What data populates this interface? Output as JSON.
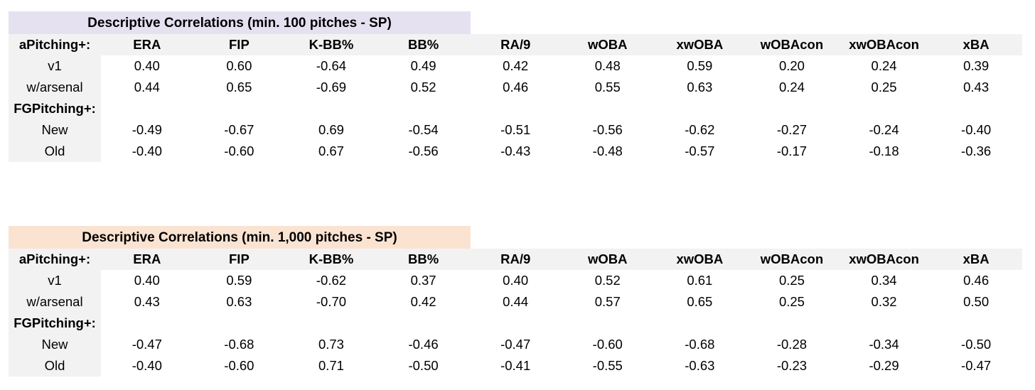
{
  "tables": [
    {
      "title": "Descriptive Correlations (min. 100 pitches - SP)",
      "title_bg": "#e6e1f1",
      "header_label": "aPitching+:",
      "columns": [
        "ERA",
        "FIP",
        "K-BB%",
        "BB%",
        "RA/9",
        "wOBA",
        "xwOBA",
        "wOBAcon",
        "xwOBAcon",
        "xBA"
      ],
      "rows": [
        {
          "label": "v1",
          "values": [
            "0.40",
            "0.60",
            "-0.64",
            "0.49",
            "0.42",
            "0.48",
            "0.59",
            "0.20",
            "0.24",
            "0.39"
          ]
        },
        {
          "label": "w/arsenal",
          "values": [
            "0.44",
            "0.65",
            "-0.69",
            "0.52",
            "0.46",
            "0.55",
            "0.63",
            "0.24",
            "0.25",
            "0.43"
          ]
        },
        {
          "label": "FGPitching+:",
          "values": [
            "",
            "",
            "",
            "",
            "",
            "",
            "",
            "",
            "",
            ""
          ]
        },
        {
          "label": "New",
          "values": [
            "-0.49",
            "-0.67",
            "0.69",
            "-0.54",
            "-0.51",
            "-0.56",
            "-0.62",
            "-0.27",
            "-0.24",
            "-0.40"
          ]
        },
        {
          "label": "Old",
          "values": [
            "-0.40",
            "-0.60",
            "0.67",
            "-0.56",
            "-0.43",
            "-0.48",
            "-0.57",
            "-0.17",
            "-0.18",
            "-0.36"
          ]
        }
      ]
    },
    {
      "title": "Descriptive Correlations (min. 1,000 pitches - SP)",
      "title_bg": "#fbe3d2",
      "header_label": "aPitching+:",
      "columns": [
        "ERA",
        "FIP",
        "K-BB%",
        "BB%",
        "RA/9",
        "wOBA",
        "xwOBA",
        "wOBAcon",
        "xwOBAcon",
        "xBA"
      ],
      "rows": [
        {
          "label": "v1",
          "values": [
            "0.40",
            "0.59",
            "-0.62",
            "0.37",
            "0.40",
            "0.52",
            "0.61",
            "0.25",
            "0.34",
            "0.46"
          ]
        },
        {
          "label": "w/arsenal",
          "values": [
            "0.43",
            "0.63",
            "-0.70",
            "0.42",
            "0.44",
            "0.57",
            "0.65",
            "0.25",
            "0.32",
            "0.50"
          ]
        },
        {
          "label": "FGPitching+:",
          "values": [
            "",
            "",
            "",
            "",
            "",
            "",
            "",
            "",
            "",
            ""
          ]
        },
        {
          "label": "New",
          "values": [
            "-0.47",
            "-0.68",
            "0.73",
            "-0.46",
            "-0.47",
            "-0.60",
            "-0.68",
            "-0.28",
            "-0.34",
            "-0.50"
          ]
        },
        {
          "label": "Old",
          "values": [
            "-0.40",
            "-0.60",
            "0.71",
            "-0.50",
            "-0.41",
            "-0.55",
            "-0.63",
            "-0.23",
            "-0.29",
            "-0.47"
          ]
        }
      ]
    }
  ]
}
